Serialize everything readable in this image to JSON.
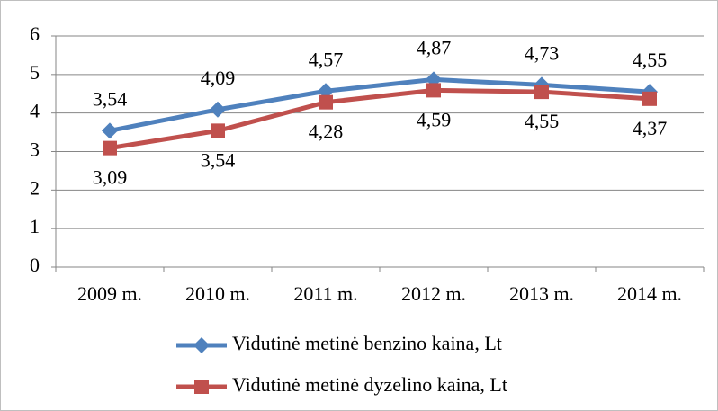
{
  "chart_data": {
    "type": "line",
    "categories": [
      "2009 m.",
      "2010 m.",
      "2011 m.",
      "2012 m.",
      "2013 m.",
      "2014 m."
    ],
    "series": [
      {
        "name": "Vidutinė metinė benzino kaina, Lt",
        "color": "#4f81bd",
        "marker": "diamond",
        "values": [
          3.54,
          4.09,
          4.57,
          4.87,
          4.73,
          4.55
        ],
        "value_labels": [
          "3,54",
          "4,09",
          "4,57",
          "4,87",
          "4,73",
          "4,55"
        ]
      },
      {
        "name": "Vidutinė metinė dyzelino kaina, Lt",
        "color": "#c0504d",
        "marker": "square",
        "values": [
          3.09,
          3.54,
          4.28,
          4.59,
          4.55,
          4.37
        ],
        "value_labels": [
          "3,09",
          "3,54",
          "4,28",
          "4,59",
          "4,55",
          "4,37"
        ]
      }
    ],
    "ylim": [
      0,
      6
    ],
    "yticks": [
      0,
      1,
      2,
      3,
      4,
      5,
      6
    ],
    "grid": true,
    "legend": "bottom"
  }
}
